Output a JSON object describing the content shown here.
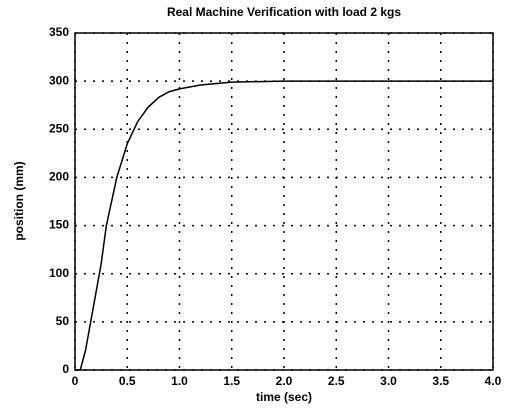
{
  "chart_data": {
    "type": "line",
    "title": "Real Machine Verification with load 2 kgs",
    "x_label": "time (sec)",
    "y_label": "position (mm)",
    "x": [
      0,
      0.05,
      0.1,
      0.15,
      0.2,
      0.25,
      0.3,
      0.4,
      0.5,
      0.6,
      0.7,
      0.8,
      0.9,
      1.0,
      1.2,
      1.5,
      2.0,
      3.0,
      4.0
    ],
    "series": [
      {
        "color": "#000000",
        "values": [
          0,
          0,
          20,
          50,
          80,
          110,
          150,
          200,
          235,
          258,
          273,
          283,
          289,
          292,
          296,
          299,
          300,
          300,
          300
        ]
      }
    ],
    "xlim": [
      0,
      4
    ],
    "ylim": [
      0,
      350
    ],
    "xticks": [
      0,
      0.5,
      {
        "value": 1,
        "label": "1.0"
      },
      1.5,
      {
        "value": 2,
        "label": "2.0"
      },
      2.5,
      {
        "value": 3,
        "label": "3.0"
      },
      3.5,
      {
        "value": 4,
        "label": "4.0"
      }
    ],
    "yticks": [
      0,
      50,
      100,
      150,
      200,
      250,
      300,
      350
    ],
    "grid": true
  }
}
